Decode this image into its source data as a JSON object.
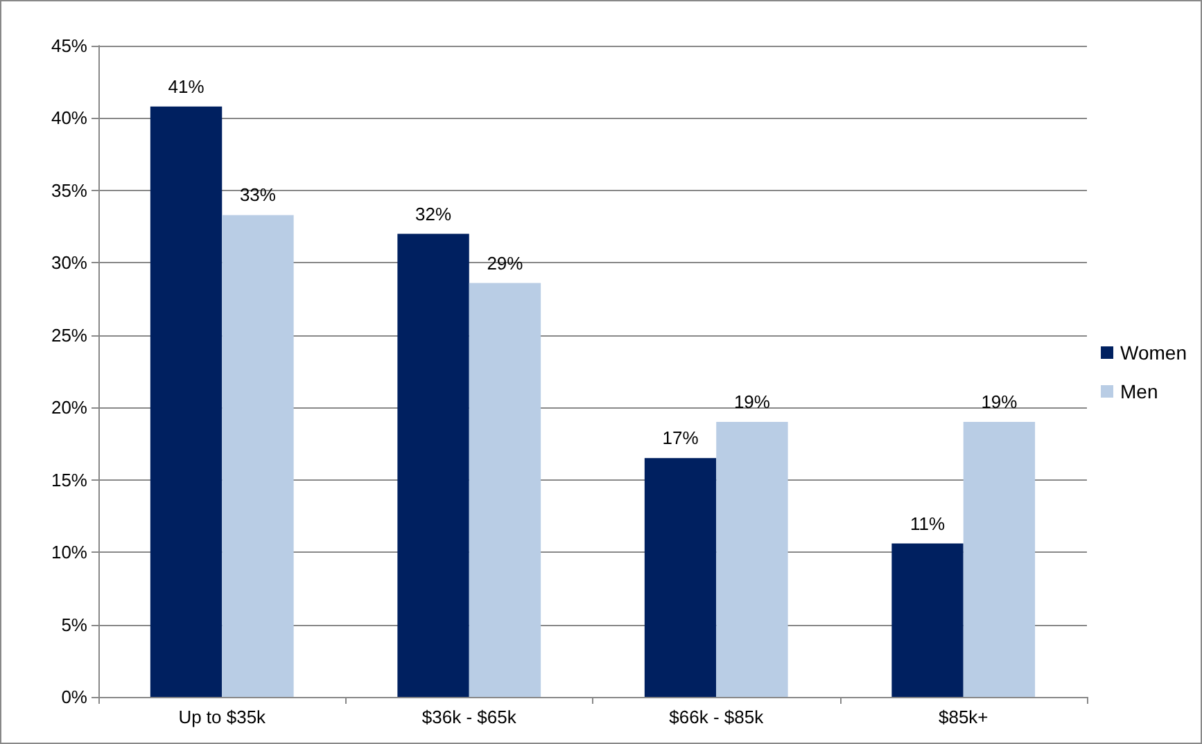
{
  "chart_data": {
    "type": "bar",
    "categories": [
      "Up to $35k",
      "$36k - $65k",
      "$66k - $85k",
      "$85k+"
    ],
    "series": [
      {
        "name": "Women",
        "color": "#002060",
        "values": [
          40.8,
          32,
          16.5,
          10.6
        ],
        "value_labels": [
          "41%",
          "32%",
          "17%",
          "11%"
        ]
      },
      {
        "name": "Men",
        "color": "#b9cde5",
        "values": [
          33.3,
          28.6,
          19,
          19
        ],
        "value_labels": [
          "33%",
          "29%",
          "19%",
          "19%"
        ]
      }
    ],
    "ylim": [
      0,
      45
    ],
    "yticks": [
      {
        "value": 0,
        "label": "0%"
      },
      {
        "value": 5,
        "label": "5%"
      },
      {
        "value": 10,
        "label": "10%"
      },
      {
        "value": 15,
        "label": "15%"
      },
      {
        "value": 20,
        "label": "20%"
      },
      {
        "value": 25,
        "label": "25%"
      },
      {
        "value": 30,
        "label": "30%"
      },
      {
        "value": 35,
        "label": "35%"
      },
      {
        "value": 40,
        "label": "40%"
      },
      {
        "value": 45,
        "label": "45%"
      }
    ],
    "grid": "y",
    "legend": "right"
  }
}
